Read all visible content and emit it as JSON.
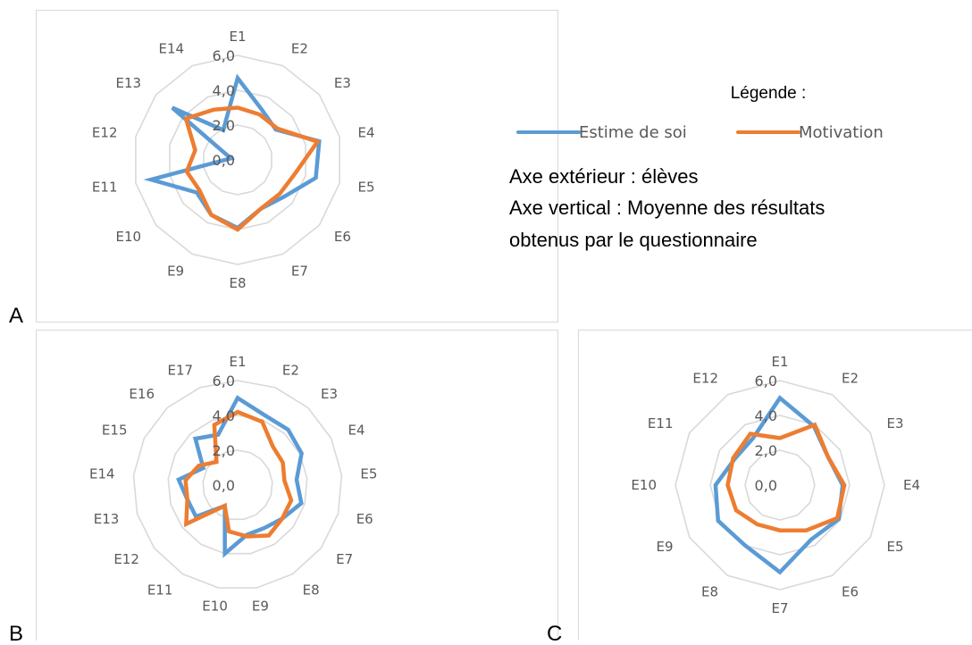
{
  "legend": {
    "title": "Légende :",
    "items": [
      {
        "name": "Estime de soi",
        "color": "#5b9bd5"
      },
      {
        "name": "Motivation",
        "color": "#ed7d31"
      }
    ],
    "notes": [
      "Axe extérieur : élèves",
      "Axe vertical : Moyenne des résultats",
      "obtenus par le questionnaire"
    ]
  },
  "chart_data": [
    {
      "type": "radar",
      "panel": "A",
      "categories": [
        "E1",
        "E2",
        "E3",
        "E4",
        "E5",
        "E6",
        "E7",
        "E8",
        "E9",
        "E10",
        "E11",
        "E12",
        "E13",
        "E14"
      ],
      "tick_labels": [
        "0,0",
        "2,0",
        "4,0",
        "6,0"
      ],
      "rlim": [
        0,
        6
      ],
      "grid": true,
      "series": [
        {
          "name": "Estime de soi",
          "values": [
            4.7,
            3.2,
            2.8,
            4.8,
            4.6,
            3.4,
            3.1,
            3.9,
            3.5,
            3.0,
            5.1,
            0.4,
            4.8,
            1.9
          ]
        },
        {
          "name": "Motivation",
          "values": [
            3.0,
            2.9,
            2.9,
            4.7,
            3.4,
            3.1,
            3.1,
            4.0,
            3.5,
            2.8,
            3.0,
            2.5,
            3.8,
            3.2
          ]
        }
      ]
    },
    {
      "type": "radar",
      "panel": "B",
      "categories": [
        "E1",
        "E2",
        "E3",
        "E4",
        "E5",
        "E6",
        "E7",
        "E8",
        "E9",
        "E10",
        "E11",
        "E12",
        "E13",
        "E14",
        "E15",
        "E16",
        "E17"
      ],
      "tick_labels": [
        "0,0",
        "2,0",
        "4,0",
        "6,0"
      ],
      "rlim": [
        0,
        6
      ],
      "grid": true,
      "series": [
        {
          "name": "Estime de soi",
          "values": [
            5.0,
            4.3,
            4.3,
            4.1,
            3.4,
            3.8,
            3.2,
            2.9,
            2.9,
            4.0,
            1.4,
            3.0,
            3.0,
            3.4,
            2.2,
            3.6,
            3.1
          ]
        },
        {
          "name": "Motivation",
          "values": [
            4.2,
            3.9,
            3.0,
            2.9,
            2.7,
            3.2,
            3.2,
            3.4,
            3.0,
            2.7,
            1.4,
            3.7,
            3.0,
            3.0,
            2.5,
            1.8,
            3.7
          ]
        }
      ]
    },
    {
      "type": "radar",
      "panel": "C",
      "categories": [
        "E1",
        "E2",
        "E3",
        "E4",
        "E5",
        "E6",
        "E7",
        "E8",
        "E9",
        "E10",
        "E11",
        "E12"
      ],
      "tick_labels": [
        "0,0",
        "2,0",
        "4,0",
        "6,0"
      ],
      "rlim": [
        0,
        6
      ],
      "grid": true,
      "series": [
        {
          "name": "Estime de soi",
          "values": [
            5.0,
            3.9,
            3.2,
            3.6,
            3.9,
            3.6,
            5.0,
            4.0,
            4.1,
            3.7,
            3.0,
            3.1
          ]
        },
        {
          "name": "Motivation",
          "values": [
            2.7,
            4.0,
            3.2,
            3.7,
            3.8,
            3.0,
            2.6,
            2.6,
            2.9,
            3.0,
            3.1,
            3.4
          ]
        }
      ]
    }
  ]
}
